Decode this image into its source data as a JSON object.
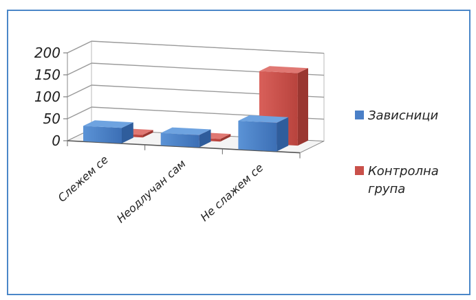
{
  "chart_data": {
    "type": "bar",
    "title": "",
    "xlabel": "",
    "ylabel": "",
    "categories": [
      "Слежем се",
      "Неодлучан сам",
      "Не слажем се"
    ],
    "series": [
      {
        "name": "Зависници",
        "values": [
          35,
          28,
          65
        ],
        "color": "#4a7fc7"
      },
      {
        "name": "Контролна група",
        "values": [
          6,
          6,
          165
        ],
        "color": "#c9504a"
      }
    ],
    "ylim": [
      0,
      200
    ],
    "yticks": [
      "0",
      "50",
      "100",
      "150",
      "200"
    ],
    "grid": true,
    "legend": {
      "placement": "right",
      "entries": [
        {
          "lines": [
            "Зависници"
          ],
          "color": "#4a7fc7"
        },
        {
          "lines": [
            "Контролна",
            "група"
          ],
          "color": "#c9504a"
        }
      ]
    }
  }
}
